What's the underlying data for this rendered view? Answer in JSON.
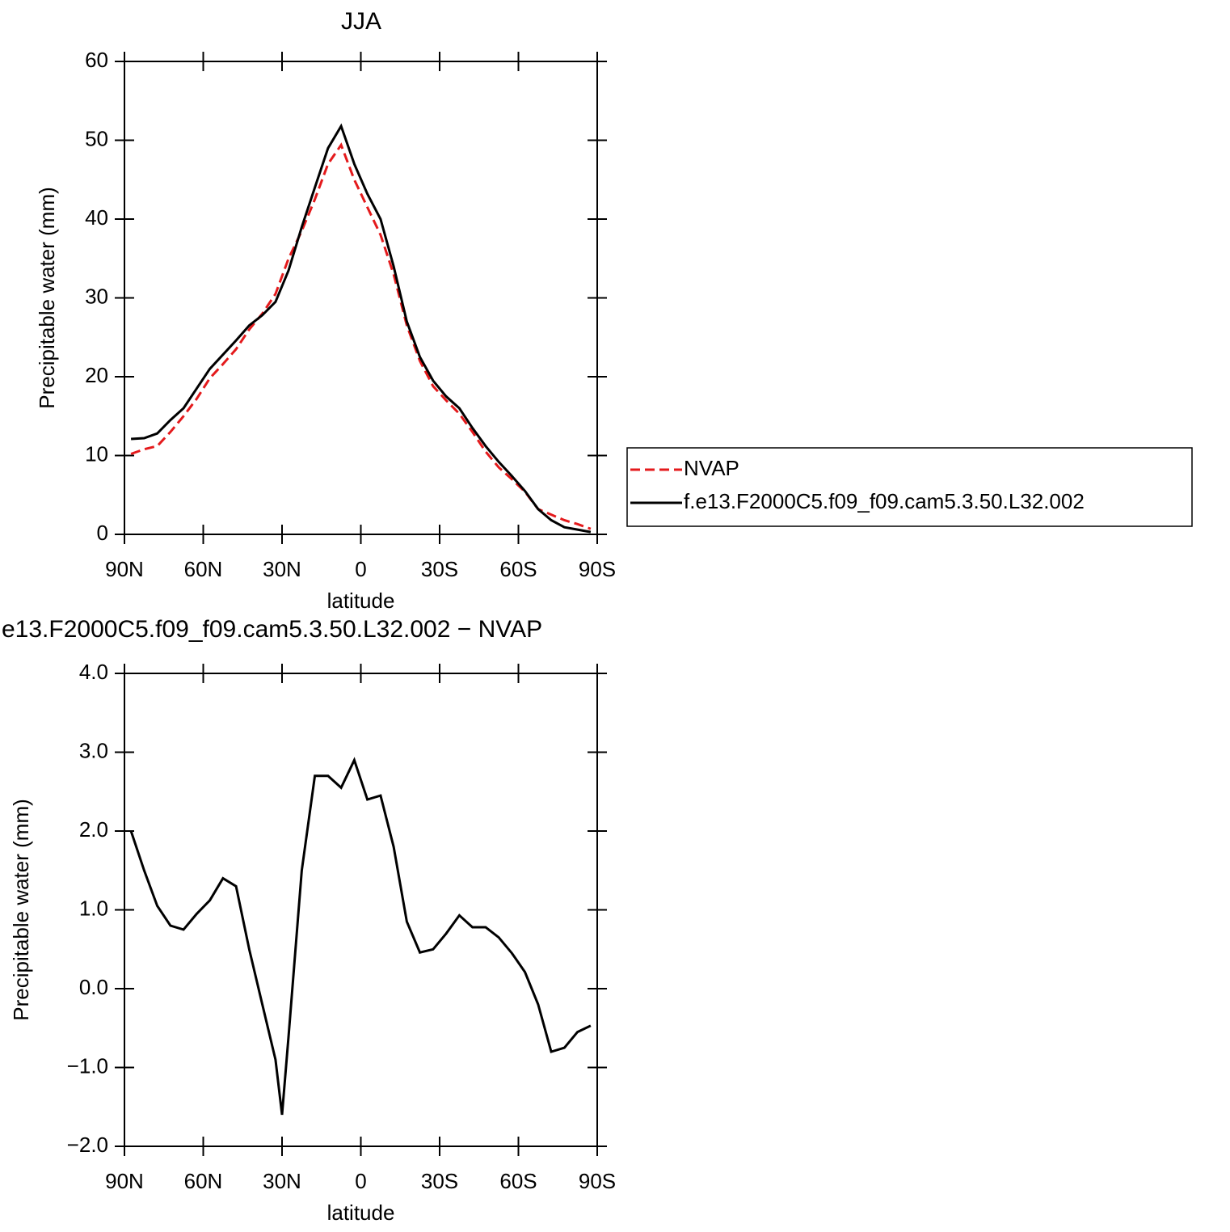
{
  "chart_data": [
    {
      "type": "line",
      "title": "JJA",
      "x": [
        87.5,
        82.5,
        77.5,
        72.5,
        67.5,
        62.5,
        57.5,
        52.5,
        47.5,
        42.5,
        37.5,
        32.5,
        27.5,
        22.5,
        17.5,
        12.5,
        7.5,
        2.5,
        -2.5,
        -7.5,
        -12.5,
        -17.5,
        -22.5,
        -27.5,
        -32.5,
        -37.5,
        -42.5,
        -47.5,
        -52.5,
        -57.5,
        -62.5,
        -67.5,
        -72.5,
        -77.5,
        -82.5,
        -87.5
      ],
      "series": [
        {
          "name": "NVAP",
          "color": "#e41a1c",
          "dashed": true,
          "values": [
            10.2,
            10.8,
            11.2,
            13,
            15,
            17.2,
            19.8,
            21.6,
            23.5,
            26,
            28,
            30.5,
            35,
            38.5,
            42.5,
            47,
            49.4,
            45,
            41.5,
            38,
            33,
            26.5,
            22,
            18.8,
            17,
            15.3,
            13,
            10.5,
            8.5,
            7,
            5.4,
            3.2,
            2.5,
            1.8,
            1.3,
            0.7
          ]
        },
        {
          "name": "f.e13.F2000C5.f09_f09.cam5.3.50.L32.002",
          "color": "#000000",
          "dashed": false,
          "values": [
            12.1,
            12.2,
            12.8,
            14.5,
            16,
            18.5,
            21,
            22.8,
            24.6,
            26.5,
            27.8,
            29.5,
            33.5,
            39,
            44,
            49,
            51.8,
            47,
            43.2,
            40,
            34,
            27,
            22.5,
            19.5,
            17.5,
            16,
            13.5,
            11.2,
            9.2,
            7.4,
            5.5,
            3.2,
            1.8,
            0.9,
            0.6,
            0.3
          ]
        }
      ],
      "xlabel": "latitude",
      "ylabel": "Precipitable water (mm)",
      "xlim": [
        90,
        -90
      ],
      "xticks": [
        {
          "value": 90,
          "label": "90N"
        },
        {
          "value": 60,
          "label": "60N"
        },
        {
          "value": 30,
          "label": "30N"
        },
        0,
        {
          "value": -30,
          "label": "30S"
        },
        {
          "value": -60,
          "label": "60S"
        },
        {
          "value": -90,
          "label": "90S"
        }
      ],
      "ylim": [
        0,
        60
      ],
      "yticks": [
        0,
        10,
        20,
        30,
        40,
        50,
        60
      ],
      "legend": "right"
    },
    {
      "type": "line",
      "title": "e13.F2000C5.f09_f09.cam5.3.50.L32.002 − NVAP",
      "x": [
        87.5,
        82.5,
        77.5,
        72.5,
        67.5,
        62.5,
        57.5,
        52.5,
        47.5,
        42.5,
        37.5,
        32.5,
        30,
        27.5,
        22.5,
        17.5,
        12.5,
        7.5,
        2.5,
        -2.5,
        -7.5,
        -12.5,
        -17.5,
        -22.5,
        -27.5,
        -32.5,
        -37.5,
        -42.5,
        -47.5,
        -52.5,
        -57.5,
        -62.5,
        -67.5,
        -72.5,
        -77.5,
        -82.5,
        -87.5
      ],
      "color": "#000000",
      "values": [
        2.0,
        1.5,
        1.05,
        0.8,
        0.75,
        0.95,
        1.12,
        1.4,
        1.3,
        0.5,
        -0.2,
        -0.9,
        -1.6,
        -0.6,
        1.5,
        2.7,
        2.7,
        2.55,
        2.9,
        2.4,
        2.45,
        1.8,
        0.85,
        0.46,
        0.5,
        0.7,
        0.93,
        0.78,
        0.78,
        0.65,
        0.45,
        0.21,
        -0.2,
        -0.8,
        -0.75,
        -0.55,
        -0.47
      ],
      "xlabel": "latitude",
      "ylabel": "Precipitable water (mm)",
      "xlim": [
        90,
        -90
      ],
      "xticks": [
        {
          "value": 90,
          "label": "90N"
        },
        {
          "value": 60,
          "label": "60N"
        },
        {
          "value": 30,
          "label": "30N"
        },
        0,
        {
          "value": -30,
          "label": "30S"
        },
        {
          "value": -60,
          "label": "60S"
        },
        {
          "value": -90,
          "label": "90S"
        }
      ],
      "ylim": [
        -2,
        4
      ],
      "yticks": [
        {
          "value": -2,
          "label": "−2.0"
        },
        {
          "value": -1,
          "label": "−1.0"
        },
        {
          "value": 0,
          "label": "0.0"
        },
        {
          "value": 1,
          "label": "1.0"
        },
        {
          "value": 2,
          "label": "2.0"
        },
        {
          "value": 3,
          "label": "3.0"
        },
        {
          "value": 4,
          "label": "4.0"
        }
      ]
    }
  ]
}
